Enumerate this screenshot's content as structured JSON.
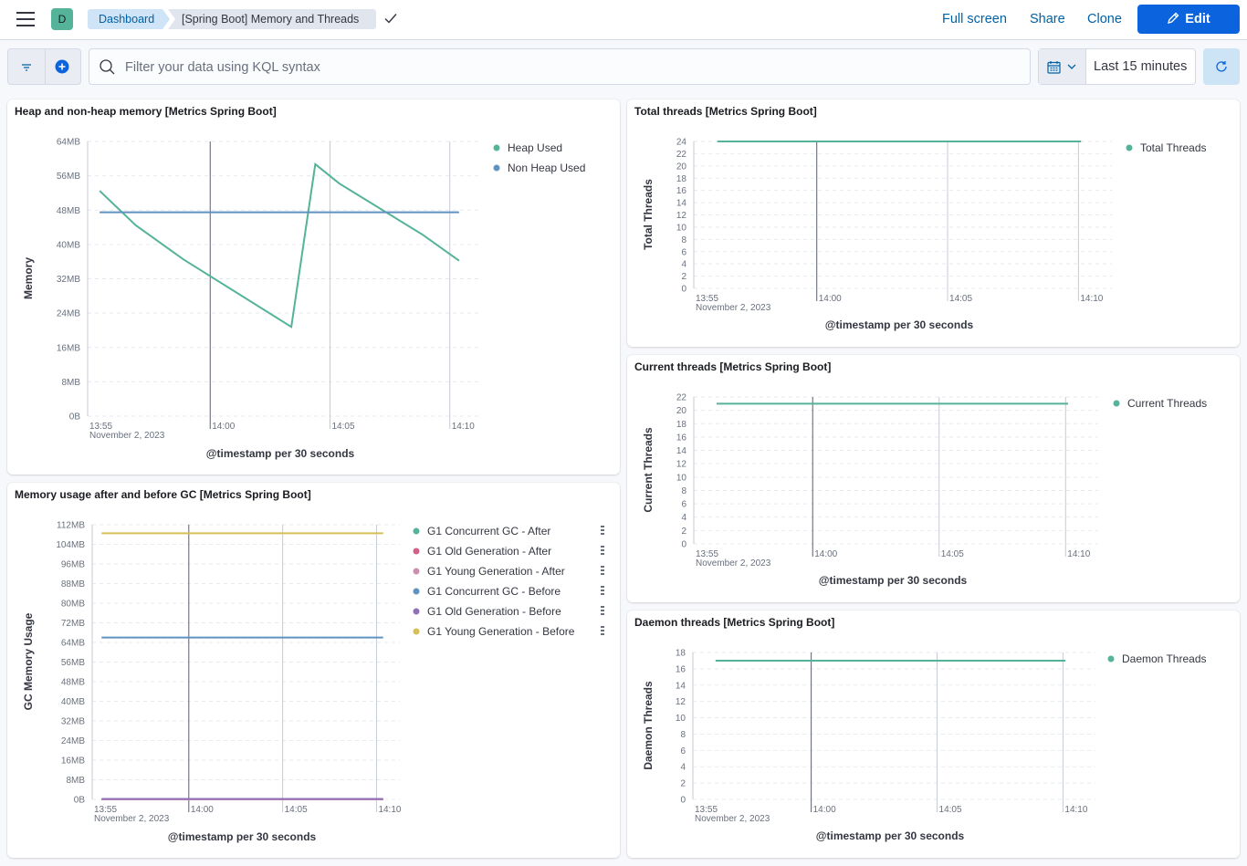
{
  "header": {
    "space_initial": "D",
    "breadcrumbs": [
      "Dashboard",
      "[Spring Boot] Memory and Threads"
    ],
    "actions": {
      "full_screen": "Full screen",
      "share": "Share",
      "clone": "Clone",
      "edit": "Edit"
    }
  },
  "filter": {
    "placeholder": "Filter your data using KQL syntax",
    "time_range": "Last 15 minutes"
  },
  "colors": {
    "green": "#54b399",
    "blue": "#6092c0",
    "pink": "#d36086",
    "mauve": "#ca8eae",
    "purple": "#9170b8",
    "yellow": "#d6bf57"
  },
  "panels": [
    {
      "id": "heap",
      "title": "Heap and non-heap memory [Metrics Spring Boot]",
      "chart_data": {
        "type": "line",
        "ylabel": "Memory",
        "xlabel": "@timestamp per 30 seconds",
        "y_ticks": [
          "0B",
          "8MB",
          "16MB",
          "24MB",
          "32MB",
          "40MB",
          "48MB",
          "56MB",
          "64MB"
        ],
        "ylim": [
          0,
          64
        ],
        "x_ticks": [
          "13:55",
          "14:00",
          "14:05",
          "14:10"
        ],
        "x_date": "November 2, 2023",
        "series": [
          {
            "name": "Heap Used",
            "color": "#54b399",
            "x": [
              0.5,
              2,
              4,
              8.5,
              9.5,
              10.5,
              14,
              15.5
            ],
            "y": [
              52.5,
              44.5,
              36.5,
              20.8,
              58.7,
              54.2,
              42.2,
              36.2
            ]
          },
          {
            "name": "Non Heap Used",
            "color": "#6092c0",
            "x": [
              0.5,
              15.5
            ],
            "y": [
              47.5,
              47.5
            ]
          }
        ]
      }
    },
    {
      "id": "total_threads",
      "title": "Total threads [Metrics Spring Boot]",
      "chart_data": {
        "type": "line",
        "ylabel": "Total Threads",
        "xlabel": "@timestamp per 30 seconds",
        "y_ticks": [
          "0",
          "2",
          "4",
          "6",
          "8",
          "10",
          "12",
          "14",
          "16",
          "18",
          "20",
          "22",
          "24"
        ],
        "ylim": [
          0,
          24
        ],
        "x_ticks": [
          "13:55",
          "14:00",
          "14:05",
          "14:10"
        ],
        "x_date": "November 2, 2023",
        "series": [
          {
            "name": "Total Threads",
            "color": "#54b399",
            "x": [
              0.9,
              14.8
            ],
            "y": [
              24,
              24
            ]
          }
        ]
      }
    },
    {
      "id": "current_threads",
      "title": "Current threads [Metrics Spring Boot]",
      "chart_data": {
        "type": "line",
        "ylabel": "Current Threads",
        "xlabel": "@timestamp per 30 seconds",
        "y_ticks": [
          "0",
          "2",
          "4",
          "6",
          "8",
          "10",
          "12",
          "14",
          "16",
          "18",
          "20",
          "22"
        ],
        "ylim": [
          0,
          22
        ],
        "x_ticks": [
          "13:55",
          "14:00",
          "14:05",
          "14:10"
        ],
        "x_date": "November 2, 2023",
        "series": [
          {
            "name": "Current Threads",
            "color": "#54b399",
            "x": [
              0.9,
              14.8
            ],
            "y": [
              21,
              21
            ]
          }
        ]
      }
    },
    {
      "id": "gc",
      "title": "Memory usage after and before GC [Metrics Spring Boot]",
      "chart_data": {
        "type": "line",
        "ylabel": "GC Memory Usage",
        "xlabel": "@timestamp per 30 seconds",
        "y_ticks": [
          "0B",
          "8MB",
          "16MB",
          "24MB",
          "32MB",
          "40MB",
          "48MB",
          "56MB",
          "64MB",
          "72MB",
          "80MB",
          "88MB",
          "96MB",
          "104MB",
          "112MB"
        ],
        "ylim": [
          0,
          112
        ],
        "x_ticks": [
          "13:55",
          "14:00",
          "14:05",
          "14:10"
        ],
        "x_date": "November 2, 2023",
        "series": [
          {
            "name": "G1 Concurrent GC - After",
            "color": "#54b399",
            "x": [
              0.5,
              15.5
            ],
            "y": [
              0,
              0
            ]
          },
          {
            "name": "G1 Old Generation - After",
            "color": "#d36086",
            "x": [
              0.5,
              15.5
            ],
            "y": [
              0,
              0
            ]
          },
          {
            "name": "G1 Young Generation - After",
            "color": "#ca8eae",
            "x": [
              0.5,
              15.5
            ],
            "y": [
              0,
              0
            ]
          },
          {
            "name": "G1 Concurrent GC - Before",
            "color": "#6092c0",
            "x": [
              0.5,
              15.5
            ],
            "y": [
              66,
              66
            ]
          },
          {
            "name": "G1 Old Generation - Before",
            "color": "#9170b8",
            "x": [
              0.5,
              15.5
            ],
            "y": [
              0.2,
              0.2
            ]
          },
          {
            "name": "G1 Young Generation - Before",
            "color": "#d6bf57",
            "x": [
              0.5,
              15.5
            ],
            "y": [
              108.5,
              108.5
            ]
          }
        ]
      }
    },
    {
      "id": "daemon_threads",
      "title": "Daemon threads [Metrics Spring Boot]",
      "chart_data": {
        "type": "line",
        "ylabel": "Daemon Threads",
        "xlabel": "@timestamp per 30 seconds",
        "y_ticks": [
          "0",
          "2",
          "4",
          "6",
          "8",
          "10",
          "12",
          "14",
          "16",
          "18"
        ],
        "ylim": [
          0,
          18
        ],
        "x_ticks": [
          "13:55",
          "14:00",
          "14:05",
          "14:10"
        ],
        "x_date": "November 2, 2023",
        "series": [
          {
            "name": "Daemon Threads",
            "color": "#54b399",
            "x": [
              0.9,
              14.8
            ],
            "y": [
              17,
              17
            ]
          }
        ]
      }
    }
  ]
}
